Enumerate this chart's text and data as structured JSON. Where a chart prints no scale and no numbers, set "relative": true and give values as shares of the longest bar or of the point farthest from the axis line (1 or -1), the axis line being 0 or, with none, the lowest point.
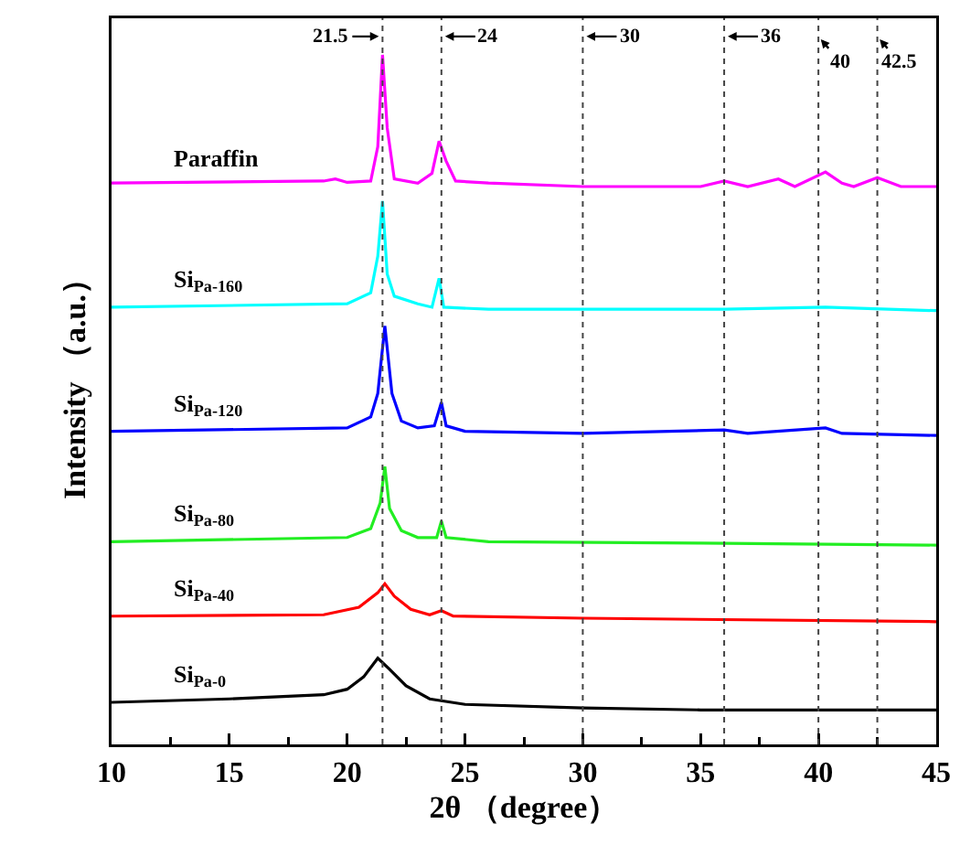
{
  "chart_data": {
    "type": "line",
    "relative": true,
    "xlabel": "2θ （degree）",
    "ylabel": "Intensity （a.u.）",
    "xlim": [
      10,
      45
    ],
    "xticks": [
      10,
      15,
      20,
      25,
      30,
      35,
      40,
      45
    ],
    "grid": false,
    "legend": false,
    "marker": "none",
    "line_style": "solid",
    "series": [
      {
        "name": "Paraffin",
        "color": "#ff00ff",
        "x": [
          10,
          19,
          19.5,
          20,
          21,
          21.3,
          21.5,
          21.7,
          22,
          23,
          23.6,
          23.9,
          24.2,
          24.6,
          26,
          30,
          35,
          36,
          37,
          38.3,
          39,
          40.3,
          41,
          41.5,
          42.5,
          43.5,
          45
        ],
        "values": [
          0.814,
          0.817,
          0.82,
          0.815,
          0.817,
          0.867,
          1.0,
          0.894,
          0.82,
          0.814,
          0.828,
          0.875,
          0.846,
          0.817,
          0.814,
          0.809,
          0.809,
          0.817,
          0.809,
          0.82,
          0.809,
          0.83,
          0.814,
          0.809,
          0.822,
          0.809,
          0.809
        ]
      },
      {
        "name": "Si$_{Pa-160}$",
        "color": "#00ffff",
        "x": [
          10,
          20,
          21,
          21.3,
          21.5,
          21.7,
          22,
          23,
          23.6,
          23.9,
          24.1,
          26,
          30,
          36,
          40.3,
          45
        ],
        "values": [
          0.634,
          0.639,
          0.655,
          0.708,
          0.788,
          0.682,
          0.65,
          0.639,
          0.634,
          0.676,
          0.634,
          0.631,
          0.631,
          0.631,
          0.634,
          0.629
        ]
      },
      {
        "name": "Si$_{Pa-120}$",
        "color": "#0000ff",
        "x": [
          10,
          20,
          21,
          21.3,
          21.6,
          21.9,
          22.3,
          23,
          23.7,
          24,
          24.2,
          25,
          30,
          36,
          37,
          40.3,
          41,
          45
        ],
        "values": [
          0.454,
          0.459,
          0.475,
          0.509,
          0.607,
          0.509,
          0.469,
          0.459,
          0.462,
          0.496,
          0.462,
          0.454,
          0.451,
          0.456,
          0.451,
          0.459,
          0.451,
          0.448
        ]
      },
      {
        "name": "Si$_{Pa-80}$",
        "color": "#22ee22",
        "x": [
          10,
          20,
          21,
          21.4,
          21.6,
          21.8,
          22.3,
          23,
          23.8,
          24,
          24.2,
          26,
          35,
          45
        ],
        "values": [
          0.294,
          0.3,
          0.313,
          0.35,
          0.403,
          0.342,
          0.31,
          0.3,
          0.3,
          0.324,
          0.3,
          0.294,
          0.292,
          0.289
        ]
      },
      {
        "name": "Si$_{Pa-40}$",
        "color": "#ff0000",
        "x": [
          10,
          19,
          20.5,
          21.3,
          21.6,
          22,
          22.7,
          23.5,
          24,
          24.5,
          30,
          45
        ],
        "values": [
          0.186,
          0.188,
          0.199,
          0.22,
          0.233,
          0.215,
          0.196,
          0.188,
          0.194,
          0.186,
          0.183,
          0.178
        ]
      },
      {
        "name": "Si$_{Pa-0}$",
        "color": "#000000",
        "x": [
          10,
          15,
          19,
          20,
          20.7,
          21.3,
          21.8,
          22.5,
          23.5,
          25,
          30,
          35,
          45
        ],
        "values": [
          0.061,
          0.066,
          0.072,
          0.08,
          0.098,
          0.125,
          0.109,
          0.085,
          0.066,
          0.058,
          0.053,
          0.05,
          0.05
        ]
      }
    ],
    "ref_lines": [
      {
        "axis": "x",
        "value": 21.5,
        "label": "21.5",
        "line_style": "dotted",
        "color": "#444444"
      },
      {
        "axis": "x",
        "value": 24,
        "label": "24",
        "line_style": "dotted",
        "color": "#444444"
      },
      {
        "axis": "x",
        "value": 30,
        "label": "30",
        "line_style": "dotted",
        "color": "#444444"
      },
      {
        "axis": "x",
        "value": 36,
        "label": "36",
        "line_style": "dotted",
        "color": "#444444"
      },
      {
        "axis": "x",
        "value": 40,
        "label": "40",
        "line_style": "dotted",
        "color": "#444444"
      },
      {
        "axis": "x",
        "value": 42.5,
        "label": "42.5",
        "line_style": "dotted",
        "color": "#444444"
      }
    ]
  }
}
